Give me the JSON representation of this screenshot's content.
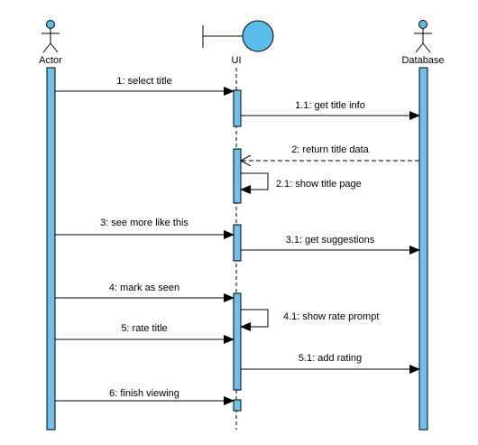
{
  "participants": [
    {
      "id": "actor",
      "label": "Actor",
      "kind": "actor"
    },
    {
      "id": "ui",
      "label": "UI",
      "kind": "boundary"
    },
    {
      "id": "db",
      "label": "Database",
      "kind": "actor"
    }
  ],
  "messages": [
    {
      "label": "1: select title",
      "from": "actor",
      "to": "ui",
      "type": "sync"
    },
    {
      "label": "1.1: get title info",
      "from": "ui",
      "to": "db",
      "type": "sync"
    },
    {
      "label": "2: return title data",
      "from": "db",
      "to": "ui",
      "type": "return"
    },
    {
      "label": "2.1: show title page",
      "from": "ui",
      "to": "ui",
      "type": "self"
    },
    {
      "label": "3: see more like this",
      "from": "actor",
      "to": "ui",
      "type": "sync"
    },
    {
      "label": "3.1: get suggestions",
      "from": "ui",
      "to": "db",
      "type": "sync"
    },
    {
      "label": "4: mark as seen",
      "from": "actor",
      "to": "ui",
      "type": "sync"
    },
    {
      "label": "4.1: show rate prompt",
      "from": "ui",
      "to": "ui",
      "type": "self"
    },
    {
      "label": "5: rate title",
      "from": "actor",
      "to": "ui",
      "type": "sync"
    },
    {
      "label": "5.1: add rating",
      "from": "ui",
      "to": "db",
      "type": "sync"
    },
    {
      "label": "6: finish viewing",
      "from": "actor",
      "to": "ui",
      "type": "sync"
    }
  ],
  "colors": {
    "lifeline_fill": "#6ec1ee",
    "stroke": "#000000",
    "head_fill": "#5bbde9"
  }
}
